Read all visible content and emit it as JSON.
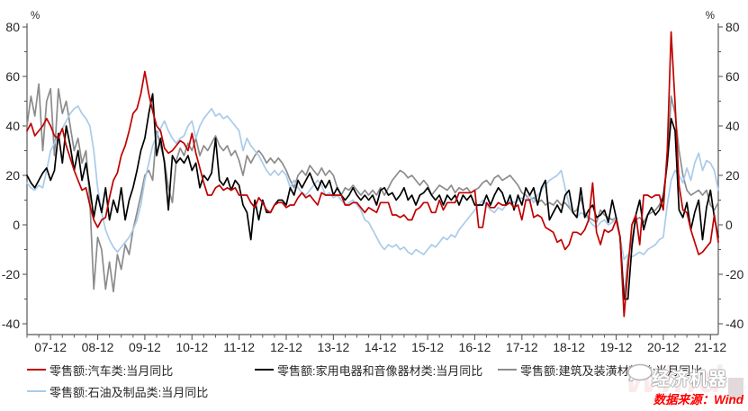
{
  "chart_data": {
    "type": "line",
    "title": "",
    "unit_label": "%",
    "grid": false,
    "legend_position": "bottom",
    "y_axis": {
      "min": -40,
      "max": 80,
      "step": 20,
      "ticks": [
        -40,
        -20,
        0,
        20,
        40,
        60,
        80
      ]
    },
    "x_axis": {
      "tick_labels": [
        "07-12",
        "08-12",
        "09-12",
        "10-12",
        "11-12",
        "12-12",
        "13-12",
        "14-12",
        "15-12",
        "16-12",
        "17-12",
        "18-12",
        "19-12",
        "20-12",
        "21-12"
      ],
      "start_month": "2007-06",
      "end_month": "2022-02",
      "minor_tick_every_months": 3,
      "major_tick_every_months": 12
    },
    "series": [
      {
        "key": "auto",
        "name": "零售额:汽车类:当月同比",
        "color": "#C00000",
        "values": [
          38,
          41,
          36,
          38,
          40,
          43,
          40,
          36,
          35,
          39,
          32,
          27,
          22,
          18,
          14,
          15,
          8,
          2,
          -1,
          2,
          3,
          11,
          18,
          21,
          28,
          32,
          38,
          45,
          47,
          53,
          62,
          53,
          46,
          40,
          38,
          31,
          29,
          30,
          32,
          34,
          33,
          30,
          37,
          29,
          23,
          17,
          12,
          12,
          15,
          16,
          14,
          15,
          14,
          15,
          12,
          12,
          12,
          9,
          7,
          11,
          9,
          6,
          5,
          8,
          9,
          9,
          7,
          8,
          8,
          11,
          13,
          11,
          12,
          10,
          8,
          13,
          12,
          12,
          12,
          12,
          12,
          8,
          8,
          9,
          9,
          7,
          5,
          7,
          6,
          5,
          9,
          9,
          9,
          4,
          4,
          3,
          4,
          2,
          2,
          6,
          7,
          9,
          9,
          5,
          5,
          10,
          6,
          9,
          9,
          9,
          13,
          13,
          13,
          13,
          14,
          -1,
          -1,
          9,
          7,
          7,
          9,
          8,
          8,
          9,
          7,
          8,
          2,
          10,
          10,
          3,
          4,
          3,
          -1,
          -2,
          -3,
          -7,
          -6,
          -10,
          -8,
          -3,
          -3,
          -4,
          -2,
          2,
          17,
          -3,
          -8,
          -2,
          -3,
          -2,
          2,
          -5,
          -37,
          -18,
          0,
          4,
          -8,
          12,
          12,
          11,
          12,
          12,
          6,
          30,
          78,
          49,
          16,
          6,
          5,
          -2,
          -7,
          -12,
          -11,
          -9,
          -7,
          4,
          -7
        ]
      },
      {
        "key": "appliances",
        "name": "零售额:家用电器和音像器材类:当月同比",
        "color": "#000000",
        "values": [
          20,
          17,
          15,
          18,
          21,
          23,
          18,
          22,
          37,
          25,
          40,
          32,
          22,
          30,
          18,
          25,
          15,
          3,
          12,
          5,
          15,
          2,
          10,
          5,
          15,
          2,
          10,
          15,
          22,
          30,
          35,
          45,
          53,
          28,
          35,
          25,
          6,
          28,
          25,
          27,
          25,
          28,
          22,
          25,
          15,
          20,
          18,
          21,
          35,
          18,
          16,
          19,
          14,
          18,
          16,
          8,
          5,
          -6,
          10,
          2,
          10,
          5,
          5,
          8,
          10,
          10,
          8,
          15,
          12,
          18,
          15,
          18,
          21,
          17,
          14,
          18,
          15,
          18,
          12,
          15,
          12,
          10,
          12,
          15,
          12,
          10,
          12,
          10,
          12,
          8,
          14,
          15,
          12,
          13,
          10,
          12,
          15,
          10,
          12,
          8,
          12,
          13,
          15,
          12,
          10,
          12,
          8,
          12,
          10,
          12,
          8,
          12,
          10,
          12,
          8,
          8,
          8,
          12,
          8,
          12,
          15,
          13,
          8,
          12,
          6,
          12,
          8,
          15,
          12,
          15,
          8,
          15,
          18,
          2,
          5,
          8,
          5,
          12,
          14,
          5,
          3,
          15,
          3,
          6,
          8,
          3,
          4,
          6,
          1,
          10,
          3,
          -5,
          -30,
          -30,
          -9,
          4,
          10,
          -2,
          4,
          7,
          4,
          6,
          11,
          25,
          43,
          38,
          6,
          3,
          9,
          -2,
          5,
          10,
          -6,
          7,
          14,
          3,
          -5
        ]
      },
      {
        "key": "building",
        "name": "零售额:建筑及装潢材料类:当月同比",
        "color": "#8C8C8C",
        "values": [
          40,
          52,
          44,
          57,
          30,
          50,
          55,
          28,
          55,
          45,
          50,
          40,
          30,
          35,
          25,
          30,
          10,
          -26,
          -5,
          -10,
          -26,
          -15,
          -27,
          -12,
          -18,
          -8,
          -12,
          -2,
          5,
          12,
          20,
          22,
          18,
          38,
          32,
          26,
          15,
          9,
          26,
          31,
          28,
          33,
          30,
          35,
          28,
          32,
          30,
          33,
          36,
          32,
          30,
          32,
          28,
          30,
          26,
          20,
          28,
          25,
          28,
          30,
          28,
          25,
          27,
          25,
          27,
          25,
          22,
          18,
          15,
          20,
          22,
          20,
          24,
          22,
          20,
          23,
          20,
          22,
          20,
          15,
          12,
          15,
          14,
          16,
          14,
          12,
          14,
          12,
          14,
          12,
          15,
          12,
          15,
          18,
          20,
          22,
          21,
          19,
          20,
          18,
          16,
          18,
          16,
          12,
          14,
          16,
          15,
          14,
          16,
          13,
          15,
          14,
          15,
          13,
          14,
          15,
          17,
          18,
          16,
          19,
          20,
          18,
          19,
          20,
          18,
          16,
          13,
          12,
          10,
          11,
          9,
          10,
          8,
          9,
          8,
          10,
          8,
          9,
          7,
          5,
          6,
          11,
          5,
          3,
          2,
          1,
          6,
          4,
          3,
          2,
          3,
          -5,
          -30,
          -14,
          -6,
          2,
          3,
          1,
          4,
          5,
          6,
          8,
          12,
          25,
          52,
          45,
          30,
          20,
          14,
          12,
          13,
          14,
          12,
          14,
          8,
          6,
          9
        ]
      },
      {
        "key": "petroleum",
        "name": "零售额:石油及制品类:当月同比",
        "color": "#A9CBEA",
        "values": [
          17,
          15,
          14,
          16,
          15,
          22,
          30,
          33,
          36,
          39,
          42,
          45,
          47,
          48,
          45,
          43,
          40,
          30,
          15,
          5,
          -2,
          -6,
          -9,
          -11,
          -9,
          -7,
          -5,
          -2,
          2,
          8,
          18,
          25,
          32,
          36,
          39,
          42,
          38,
          35,
          33,
          35,
          36,
          40,
          42,
          35,
          40,
          43,
          45,
          47,
          44,
          45,
          43,
          44,
          42,
          40,
          38,
          30,
          35,
          32,
          30,
          28,
          25,
          22,
          20,
          22,
          20,
          22,
          20,
          15,
          18,
          15,
          13,
          12,
          14,
          16,
          18,
          16,
          12,
          13,
          11,
          12,
          10,
          8,
          9,
          10,
          8,
          6,
          2,
          1,
          -2,
          -5,
          -8,
          -10,
          -8,
          -9,
          -8,
          -10,
          -9,
          -11,
          -12,
          -10,
          -11,
          -12,
          -10,
          -8,
          -9,
          -7,
          -5,
          -6,
          -4,
          -5,
          -2,
          0,
          2,
          4,
          6,
          8,
          10,
          8,
          6,
          5,
          7,
          6,
          8,
          10,
          9,
          10,
          11,
          10,
          12,
          9,
          12,
          14,
          16,
          18,
          19,
          20,
          22,
          15,
          8,
          5,
          3,
          5,
          4,
          2,
          0,
          -1,
          1,
          2,
          0,
          1,
          3,
          -5,
          -14,
          -12,
          -13,
          -12,
          -11,
          -12,
          -10,
          -9,
          -8,
          -6,
          -5,
          8,
          18,
          22,
          20,
          17,
          23,
          18,
          25,
          29,
          22,
          26,
          25,
          22,
          14
        ]
      }
    ],
    "legend_rows": [
      [
        "auto",
        "appliances",
        "building"
      ],
      [
        "petroleum"
      ]
    ]
  },
  "footer": {
    "source_note": "数据来源：Wind",
    "source_color": "#FF0000",
    "watermark_brand": "经济机器",
    "watermark_wind": "Wind"
  },
  "icons": {
    "speech_bubble": "speech-bubble-logo-icon"
  }
}
